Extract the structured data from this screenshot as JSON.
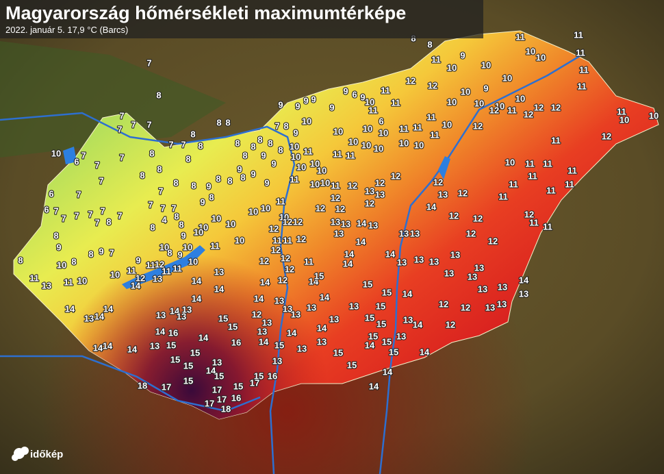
{
  "header": {
    "title": "Magyarország hőmérsékleti maximumtérképe",
    "subtitle": "2022. január 5.   17,9 °C (Barcs)"
  },
  "logo": "időkép",
  "stations": [
    10,
    6,
    7,
    7,
    7,
    7,
    7,
    7,
    7,
    7,
    6,
    7,
    6,
    7,
    7,
    7,
    7,
    7,
    8,
    7,
    7,
    8,
    9,
    8,
    10,
    8,
    8,
    9,
    7,
    11,
    13,
    11,
    10,
    14,
    13,
    14,
    14,
    14,
    14,
    14,
    8,
    8,
    7,
    7,
    8,
    8,
    8,
    8,
    8,
    7,
    8,
    9,
    9,
    8,
    8,
    7,
    7,
    7,
    8,
    4,
    8,
    8,
    9,
    10,
    10,
    10,
    10,
    10,
    9,
    10,
    10,
    8,
    9,
    11,
    12,
    11,
    11,
    10,
    11,
    12,
    13,
    14,
    8,
    8,
    8,
    8,
    8,
    8,
    7,
    8,
    9,
    8,
    10,
    10,
    11,
    10,
    10,
    9,
    9,
    8,
    9,
    8,
    8,
    9,
    9,
    9,
    9,
    9,
    9,
    9,
    10,
    9,
    6,
    9,
    10,
    11,
    11,
    11,
    6,
    12,
    12,
    11,
    10,
    9,
    10,
    11,
    10,
    10,
    11,
    11,
    11,
    11,
    9,
    10,
    10,
    10,
    10,
    10,
    10,
    11,
    10,
    11,
    11,
    10,
    10,
    10,
    10,
    10,
    10,
    10,
    10,
    11,
    11,
    11,
    10,
    10,
    11,
    10,
    11,
    10,
    10,
    11,
    10,
    12,
    12,
    12,
    11,
    11,
    12,
    10,
    11,
    12,
    12,
    11,
    12,
    12,
    12,
    11,
    10,
    10,
    12,
    11,
    10,
    11,
    11,
    11,
    11,
    11,
    11,
    11,
    11,
    12,
    11,
    11,
    12,
    12,
    12,
    12,
    12,
    12,
    13,
    14,
    12,
    12,
    12,
    13,
    13,
    12,
    12,
    12,
    12,
    13,
    13,
    14,
    13,
    13,
    14,
    13,
    13,
    14,
    13,
    13,
    13,
    13,
    13,
    13,
    13,
    13,
    14,
    13,
    13,
    13,
    13,
    12,
    12,
    12,
    14,
    13,
    13,
    15,
    15,
    14,
    15,
    14,
    14,
    15,
    15,
    15,
    15,
    13,
    13,
    14,
    14,
    14,
    15,
    11,
    12,
    12,
    12,
    14,
    12,
    12,
    14,
    15,
    14,
    13,
    13,
    13,
    13,
    14,
    12,
    13,
    13,
    14,
    15,
    14,
    13,
    13,
    13,
    15,
    15,
    14,
    14,
    14,
    14,
    13,
    14,
    14,
    13,
    13,
    13,
    14,
    16,
    13,
    15,
    14,
    15,
    15,
    16,
    15,
    15,
    13,
    14,
    15,
    15,
    15,
    15,
    17,
    15,
    16,
    17,
    18,
    17,
    17,
    17,
    16,
    18,
    7,
    8,
    8,
    8
  ]
}
